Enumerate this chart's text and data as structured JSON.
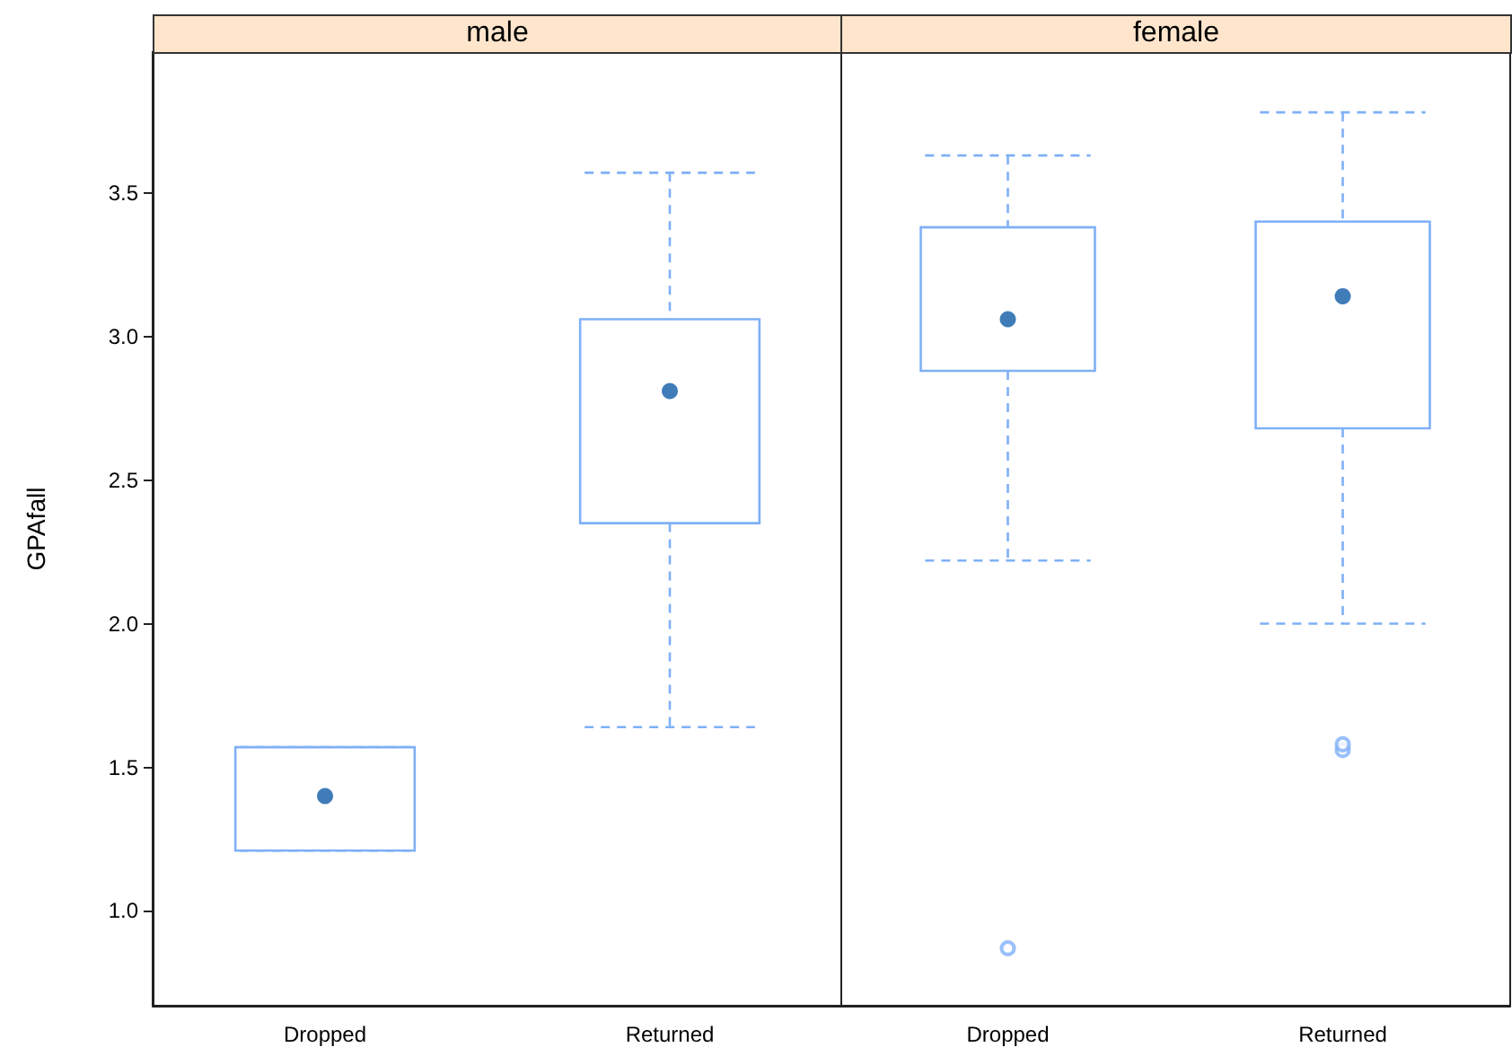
{
  "chart_data": [
    {
      "type": "box",
      "title": "male",
      "ylabel": "GPAfall",
      "categories": [
        "Dropped",
        "Returned"
      ],
      "ylim": [
        0.67,
        3.99
      ],
      "yticks": [
        {
          "value": 1,
          "label": "1.0"
        },
        {
          "value": 1.5,
          "label": "1.5"
        },
        {
          "value": 2,
          "label": "2.0"
        },
        {
          "value": 2.5,
          "label": "2.5"
        },
        {
          "value": 3,
          "label": "3.0"
        },
        {
          "value": 3.5,
          "label": "3.5"
        }
      ],
      "grid": false,
      "series": [
        {
          "color": "#7fb0f7",
          "boxes": [
            {
              "low": 1.21,
              "q1": 1.21,
              "median": 1.4,
              "q3": 1.57,
              "high": 1.57
            },
            {
              "low": 1.64,
              "q1": 2.35,
              "median": 2.81,
              "q3": 3.06,
              "high": 3.57
            }
          ]
        }
      ]
    },
    {
      "type": "box",
      "title": "female",
      "categories": [
        "Dropped",
        "Returned"
      ],
      "ylim": [
        0.67,
        3.99
      ],
      "tick_labels": "x",
      "grid": false,
      "series": [
        {
          "color": "#7fb0f7",
          "boxes": [
            {
              "low": 2.22,
              "q1": 2.88,
              "median": 3.06,
              "q3": 3.38,
              "high": 3.63,
              "outliers": [
                0.87
              ]
            },
            {
              "low": 2.0,
              "q1": 2.68,
              "median": 3.14,
              "q3": 3.4,
              "high": 3.78,
              "outliers": [
                1.56,
                1.58
              ]
            }
          ]
        }
      ]
    }
  ]
}
